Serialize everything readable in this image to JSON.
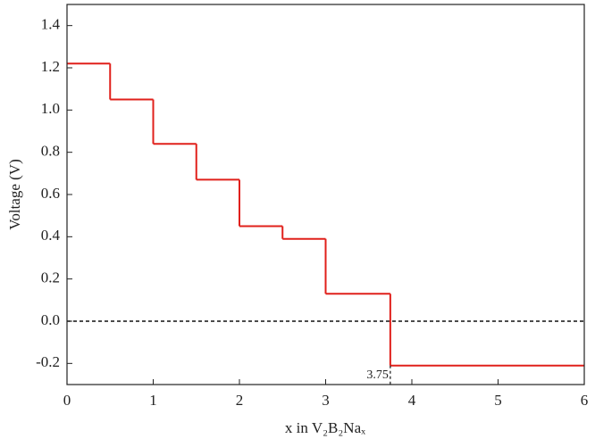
{
  "chart_data": {
    "type": "step",
    "xlabel": "x in V₂B₂Naₓ",
    "ylabel": "Voltage (V)",
    "x": [
      0,
      0.5,
      1,
      1.5,
      2,
      2.5,
      3,
      3.75
    ],
    "values": [
      1.22,
      1.05,
      0.84,
      0.67,
      0.45,
      0.39,
      0.13,
      -0.21
    ],
    "color": "#e0201b",
    "xlim": [
      0,
      6
    ],
    "ylim": [
      -0.3,
      1.5
    ],
    "xticks": [
      0,
      1,
      2,
      3,
      4,
      5,
      6
    ],
    "yticks": [
      -0.2,
      {
        "value": 0,
        "label": "0.0"
      },
      0.2,
      0.4,
      0.6,
      0.8,
      {
        "value": 1,
        "label": "1.0"
      },
      1.2,
      1.4
    ],
    "hline": 0,
    "annotations": [
      {
        "x": 3.75,
        "label": "3.75"
      }
    ]
  }
}
